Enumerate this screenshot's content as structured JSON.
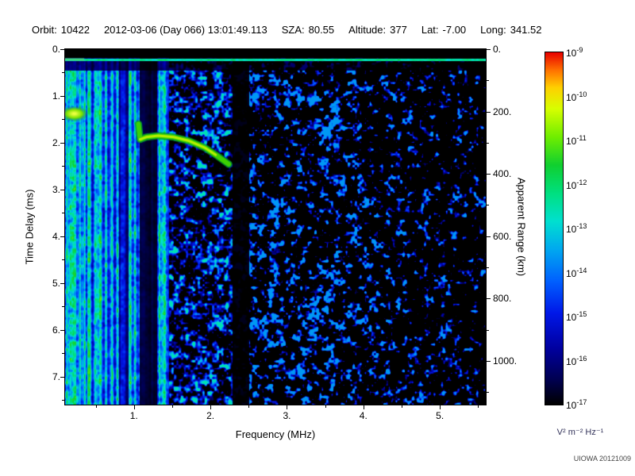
{
  "header": {
    "fields": [
      {
        "label": "Orbit:",
        "value": "10422"
      },
      {
        "label": "",
        "value": "2012-03-06 (Day 066) 13:01:49.113"
      },
      {
        "label": "SZA:",
        "value": "80.55"
      },
      {
        "label": "Altitude:",
        "value": "377"
      },
      {
        "label": "Lat:",
        "value": "-7.00"
      },
      {
        "label": "Long:",
        "value": "341.52"
      }
    ]
  },
  "footer": {
    "credit": "UIOWA 20121009"
  },
  "chart_data": {
    "type": "heatmap",
    "description": "Radar sounder ionogram spectrogram: received spectral density vs frequency and time delay",
    "xlabel": "Frequency (MHz)",
    "ylabel": "Time Delay (ms)",
    "y2label": "Apparent Range (km)",
    "x_range_mhz": [
      0.1,
      5.6
    ],
    "y_range_ms": [
      0.0,
      7.6
    ],
    "x_ticks": {
      "values": [
        1,
        2,
        3,
        4,
        5
      ],
      "labels": [
        "1.",
        "2.",
        "3.",
        "4.",
        "5."
      ],
      "minor": [
        0.5,
        1.5,
        2.5,
        3.5,
        4.5,
        5.5
      ]
    },
    "y_ticks": {
      "values": [
        0,
        1,
        2,
        3,
        4,
        5,
        6,
        7
      ],
      "labels": [
        "0.",
        "1.",
        "2.",
        "3.",
        "4.",
        "5.",
        "6.",
        "7."
      ],
      "minor": [
        0.5,
        1.5,
        2.5,
        3.5,
        4.5,
        5.5,
        6.5,
        7.5
      ]
    },
    "y2_ticks": {
      "values_km": [
        0,
        200,
        400,
        600,
        800,
        1000
      ],
      "labels": [
        "0.",
        "200.",
        "400.",
        "600.",
        "800.",
        "1000."
      ],
      "minor_km": [
        100,
        300,
        500,
        700,
        900,
        1100
      ],
      "km_per_ms": 150
    },
    "colorbar": {
      "base": "10",
      "exponents": [
        -9,
        -10,
        -11,
        -12,
        -13,
        -14,
        -15,
        -16,
        -17
      ],
      "unit": "V² m⁻² Hz⁻¹"
    },
    "colormap": [
      {
        "t": 0.0,
        "c": "#000000"
      },
      {
        "t": 0.07,
        "c": "#000050"
      },
      {
        "t": 0.16,
        "c": "#0000a0"
      },
      {
        "t": 0.26,
        "c": "#0018e8"
      },
      {
        "t": 0.35,
        "c": "#0060ff"
      },
      {
        "t": 0.44,
        "c": "#00a8f0"
      },
      {
        "t": 0.52,
        "c": "#00e0d0"
      },
      {
        "t": 0.6,
        "c": "#00e080"
      },
      {
        "t": 0.68,
        "c": "#10d030"
      },
      {
        "t": 0.76,
        "c": "#70ee00"
      },
      {
        "t": 0.84,
        "c": "#d8ff00"
      },
      {
        "t": 0.9,
        "c": "#ffd000"
      },
      {
        "t": 0.95,
        "c": "#ff7000"
      },
      {
        "t": 1.0,
        "c": "#e80000"
      }
    ],
    "features": {
      "noise_seed": 1337,
      "surface_line_ms": 0.22,
      "surface_gap_ms": 0.45,
      "band_boundaries_mhz": [
        1.45,
        2.3
      ],
      "plasma_lines_mhz": [
        0.12,
        0.17,
        0.23,
        0.29,
        0.35,
        0.42,
        0.49,
        0.56,
        0.63,
        0.71,
        0.78,
        0.87,
        0.95,
        1.01,
        1.33,
        1.4
      ],
      "dark_bands": [
        {
          "range": [
            0.8,
            0.93
          ],
          "factor": 0.45
        },
        {
          "range": [
            1.07,
            1.3
          ],
          "factor": 0.12
        },
        {
          "range": [
            2.28,
            2.5
          ],
          "factor": 0.06
        }
      ],
      "ionosphere_trace_mhz_ms": [
        [
          1.06,
          1.6
        ],
        [
          1.08,
          1.93
        ],
        [
          1.16,
          1.88
        ],
        [
          1.32,
          1.85
        ],
        [
          1.52,
          1.88
        ],
        [
          1.72,
          1.96
        ],
        [
          1.92,
          2.1
        ],
        [
          2.07,
          2.26
        ],
        [
          2.24,
          2.46
        ]
      ],
      "bright_patch": {
        "f_mhz": 0.22,
        "delay_ms": 1.38
      }
    }
  }
}
